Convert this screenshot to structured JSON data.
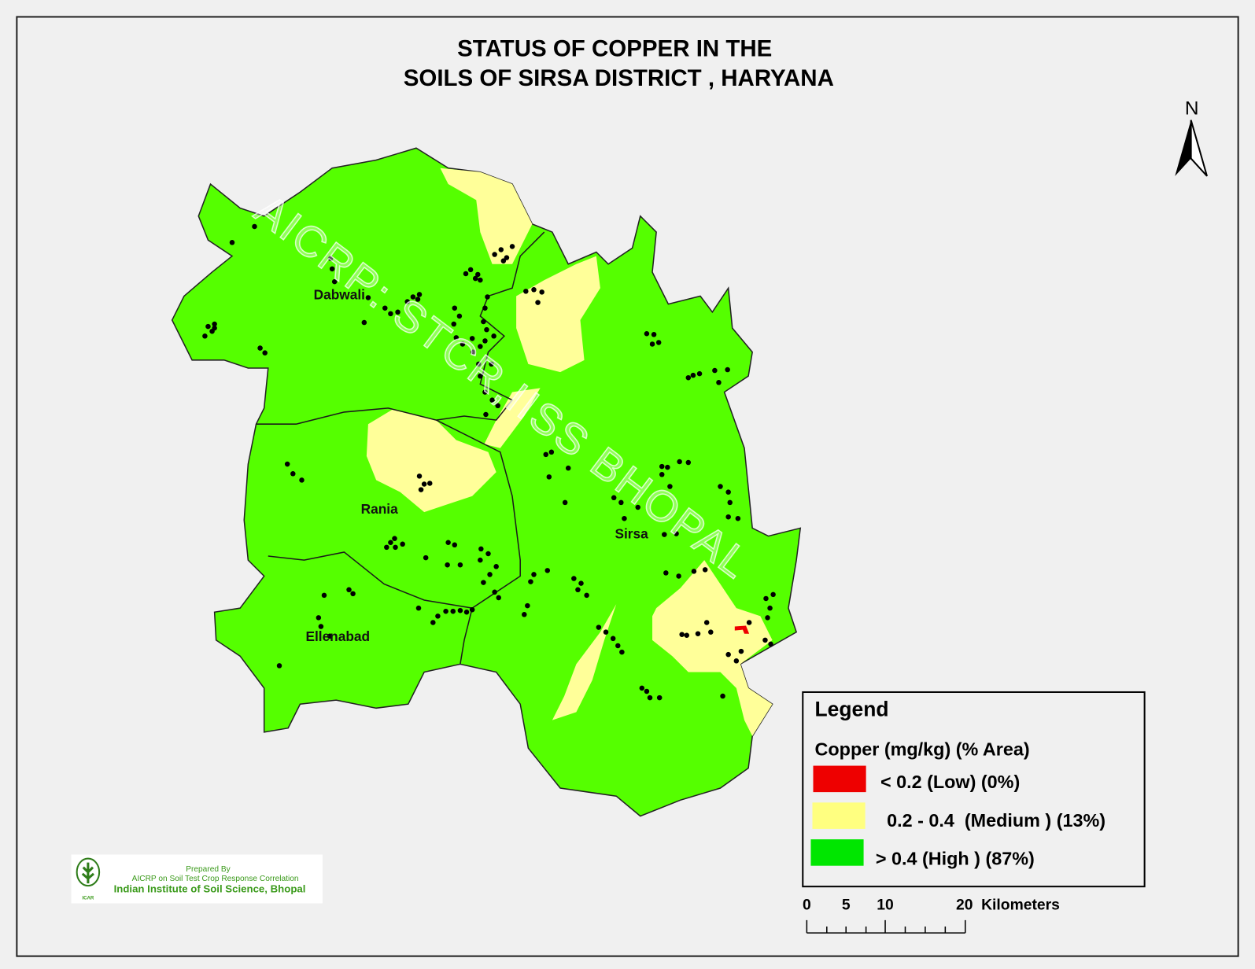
{
  "title": {
    "line1": "STATUS OF  COPPER  IN THE",
    "line2": "SOILS OF SIRSA DISTRICT , HARYANA"
  },
  "north_arrow": {
    "label": "N",
    "icon": "north-arrow-icon"
  },
  "watermark": "AICRP: STCR,IISS BHOPAL",
  "districts": [
    {
      "name": "Dabwali"
    },
    {
      "name": "Rania"
    },
    {
      "name": "Sirsa"
    },
    {
      "name": "Ellenabad"
    }
  ],
  "legend": {
    "title": "Legend",
    "subtitle": "Copper (mg/kg) (% Area)",
    "items": [
      {
        "label": "< 0.2 (Low) (0%)",
        "color": "#ee0000"
      },
      {
        "label": "0.2 - 0.4  (Medium ) (13%)",
        "color": "#ffff80"
      },
      {
        "label": "> 0.4 (High ) (87%)",
        "color": "#00e600"
      }
    ]
  },
  "map_colors": {
    "high": "#55ff00",
    "medium": "#ffff99",
    "low": "#ee0000",
    "sample_point": "#000000"
  },
  "scale_bar": {
    "ticks": [
      "0",
      "5",
      "10",
      "20"
    ],
    "unit": "Kilometers"
  },
  "credit": {
    "line1": "Prepared By",
    "line2": "AICRP on Soil Test Crop Response Correlation",
    "line3": "Indian Institute of Soil Science, Bhopal",
    "logo_text": "ICAR"
  }
}
